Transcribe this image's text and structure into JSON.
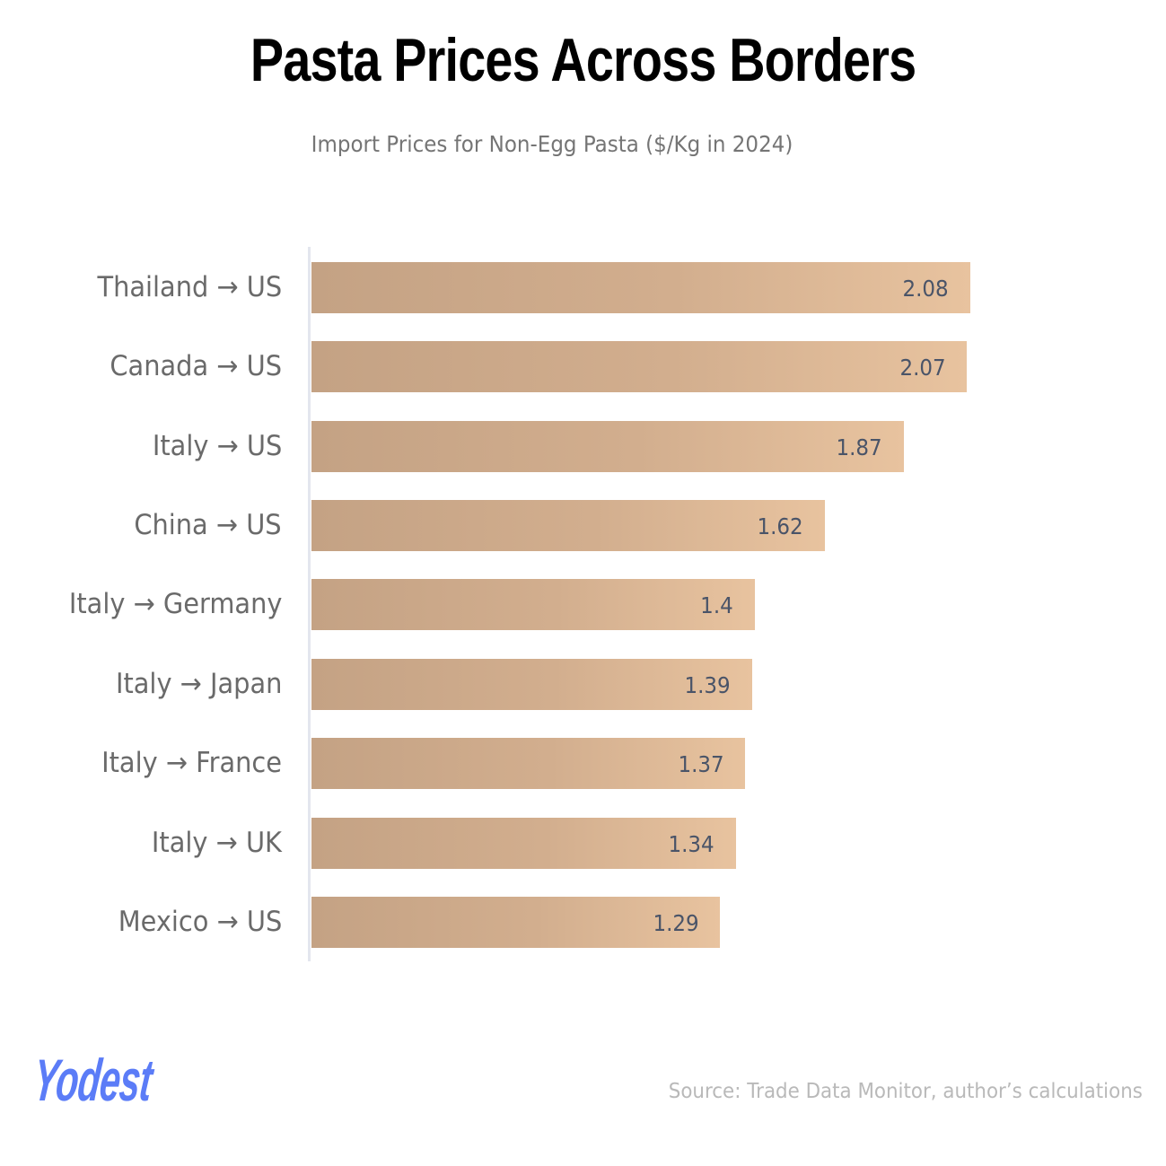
{
  "header": {
    "title": "Pasta Prices Across Borders",
    "subtitle": "Import Prices for Non-Egg Pasta ($/Kg in 2024)"
  },
  "footer": {
    "logo": "Yodest",
    "source": "Source: Trade Data Monitor, author’s calculations"
  },
  "colors": {
    "bar_start": "#c4a284",
    "bar_end": "#e8c39f",
    "value_text": "#4a5468",
    "label_text": "#6a6a6a",
    "logo": "#5b7cf7"
  },
  "chart_data": {
    "type": "bar",
    "orientation": "horizontal",
    "title": "Pasta Prices Across Borders",
    "subtitle": "Import Prices for Non-Egg Pasta ($/Kg in 2024)",
    "xlabel": "",
    "ylabel": "",
    "categories": [
      "Thailand → US",
      "Canada → US",
      "Italy → US",
      "China → US",
      "Italy → Germany",
      "Italy → Japan",
      "Italy → France",
      "Italy → UK",
      "Mexico → US"
    ],
    "values": [
      2.08,
      2.07,
      1.87,
      1.62,
      1.4,
      1.39,
      1.37,
      1.34,
      1.29
    ],
    "value_labels": [
      "2.08",
      "2.07",
      "1.87",
      "1.62",
      "1.4",
      "1.39",
      "1.37",
      "1.34",
      "1.29"
    ],
    "xlim": [
      0,
      2.08
    ],
    "grid": false,
    "legend": "none",
    "source": "Source: Trade Data Monitor, author’s calculations"
  }
}
